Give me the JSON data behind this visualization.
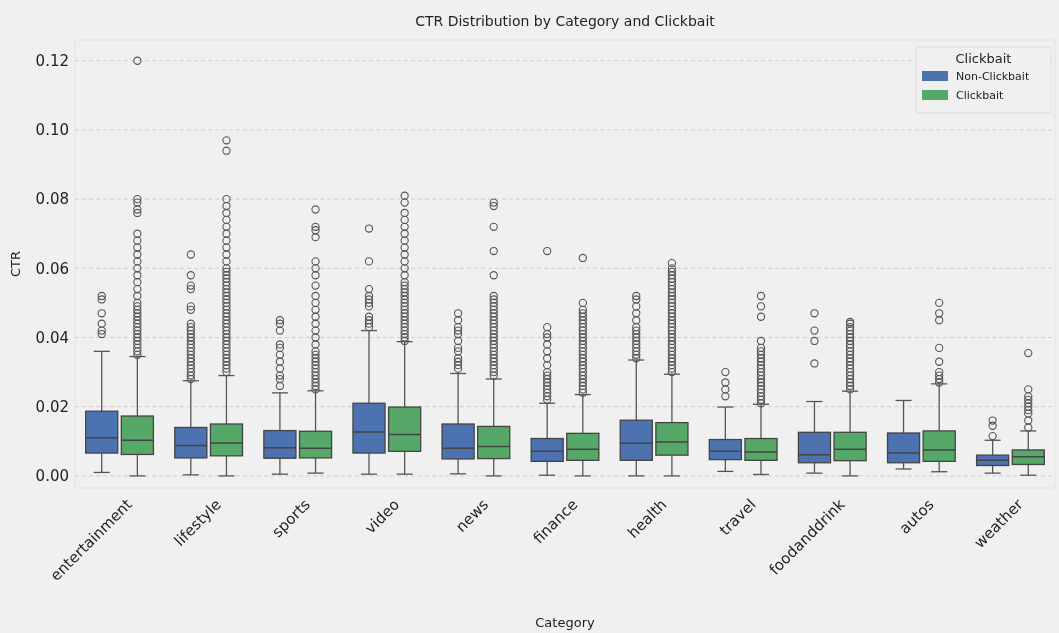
{
  "chart_data": {
    "type": "box",
    "title": "CTR Distribution by Category and Clickbait",
    "xlabel": "Category",
    "ylabel": "CTR",
    "legend_title": "Clickbait",
    "legend": "top right",
    "grid": "y",
    "categories": [
      "entertainment",
      "lifestyle",
      "sports",
      "video",
      "news",
      "finance",
      "health",
      "travel",
      "foodanddrink",
      "autos",
      "weather"
    ],
    "ylim": [
      -0.0035,
      0.126
    ],
    "yticks": [
      {
        "value": 0,
        "label": "0.00"
      },
      {
        "value": 0.02,
        "label": "0.02"
      },
      {
        "value": 0.04,
        "label": "0.04"
      },
      {
        "value": 0.06,
        "label": "0.06"
      },
      {
        "value": 0.08,
        "label": "0.08"
      },
      {
        "value": 0.1,
        "label": "0.10"
      },
      {
        "value": 0.12,
        "label": "0.12"
      }
    ],
    "series": [
      {
        "name": "Non-Clickbait",
        "color": "#4c72b0",
        "boxes": [
          {
            "low": 0.001,
            "q1": 0.0066,
            "median": 0.011,
            "q3": 0.0187,
            "high": 0.036,
            "outliers": [
              0.041,
              0.042,
              0.044,
              0.047,
              0.051,
              0.052
            ]
          },
          {
            "low": 0.0003,
            "q1": 0.0052,
            "median": 0.0088,
            "q3": 0.014,
            "high": 0.0275,
            "outliers": [
              0.028,
              0.029,
              0.03,
              0.031,
              0.032,
              0.033,
              0.034,
              0.035,
              0.036,
              0.037,
              0.038,
              0.039,
              0.04,
              0.041,
              0.042,
              0.043,
              0.044,
              0.048,
              0.049,
              0.054,
              0.055,
              0.058,
              0.064
            ]
          },
          {
            "low": 0.0005,
            "q1": 0.0051,
            "median": 0.0081,
            "q3": 0.0131,
            "high": 0.024,
            "outliers": [
              0.026,
              0.028,
              0.029,
              0.031,
              0.033,
              0.035,
              0.037,
              0.038,
              0.042,
              0.044,
              0.045
            ]
          },
          {
            "low": 0.0005,
            "q1": 0.0066,
            "median": 0.0127,
            "q3": 0.021,
            "high": 0.042,
            "outliers": [
              0.043,
              0.044,
              0.045,
              0.046,
              0.049,
              0.05,
              0.051,
              0.052,
              0.054,
              0.062,
              0.0715
            ]
          },
          {
            "low": 0.0006,
            "q1": 0.0049,
            "median": 0.008,
            "q3": 0.015,
            "high": 0.0296,
            "outliers": [
              0.031,
              0.032,
              0.033,
              0.034,
              0.036,
              0.037,
              0.039,
              0.041,
              0.042,
              0.043,
              0.045,
              0.047
            ]
          },
          {
            "low": 0.0002,
            "q1": 0.0042,
            "median": 0.0071,
            "q3": 0.0108,
            "high": 0.021,
            "outliers": [
              0.022,
              0.023,
              0.024,
              0.025,
              0.026,
              0.027,
              0.028,
              0.029,
              0.03,
              0.032,
              0.034,
              0.036,
              0.038,
              0.04,
              0.041,
              0.043,
              0.065
            ]
          },
          {
            "low": 0,
            "q1": 0.0045,
            "median": 0.0094,
            "q3": 0.0161,
            "high": 0.0335,
            "outliers": [
              0.034,
              0.035,
              0.036,
              0.037,
              0.038,
              0.039,
              0.04,
              0.041,
              0.042,
              0.043,
              0.045,
              0.047,
              0.049,
              0.051,
              0.052
            ]
          },
          {
            "low": 0.0013,
            "q1": 0.0047,
            "median": 0.0071,
            "q3": 0.0105,
            "high": 0.0199,
            "outliers": [
              0.023,
              0.025,
              0.027,
              0.03
            ]
          },
          {
            "low": 0.0008,
            "q1": 0.0038,
            "median": 0.0061,
            "q3": 0.0126,
            "high": 0.0215,
            "outliers": [
              0.0325,
              0.039,
              0.042,
              0.047
            ]
          },
          {
            "low": 0.002,
            "q1": 0.0038,
            "median": 0.0066,
            "q3": 0.0124,
            "high": 0.0218
          },
          {
            "low": 0.0008,
            "q1": 0.003,
            "median": 0.0045,
            "q3": 0.006,
            "high": 0.0103,
            "outliers": [
              0.0115,
              0.0145,
              0.016
            ]
          }
        ]
      },
      {
        "name": "Clickbait",
        "color": "#55a868",
        "boxes": [
          {
            "low": 0,
            "q1": 0.0062,
            "median": 0.0103,
            "q3": 0.0173,
            "high": 0.0345,
            "outliers": [
              0.035,
              0.036,
              0.037,
              0.038,
              0.039,
              0.04,
              0.041,
              0.042,
              0.043,
              0.044,
              0.045,
              0.046,
              0.047,
              0.048,
              0.049,
              0.05,
              0.052,
              0.054,
              0.056,
              0.058,
              0.06,
              0.062,
              0.064,
              0.066,
              0.068,
              0.07,
              0.076,
              0.077,
              0.079,
              0.08,
              0.12
            ]
          },
          {
            "low": 0,
            "q1": 0.0058,
            "median": 0.0095,
            "q3": 0.015,
            "high": 0.029,
            "outliers": [
              0.03,
              0.031,
              0.032,
              0.033,
              0.034,
              0.035,
              0.036,
              0.037,
              0.038,
              0.039,
              0.04,
              0.041,
              0.042,
              0.043,
              0.044,
              0.045,
              0.046,
              0.047,
              0.048,
              0.049,
              0.05,
              0.051,
              0.052,
              0.053,
              0.054,
              0.055,
              0.056,
              0.057,
              0.058,
              0.059,
              0.06,
              0.062,
              0.064,
              0.066,
              0.068,
              0.07,
              0.072,
              0.074,
              0.076,
              0.078,
              0.08,
              0.094,
              0.097
            ]
          },
          {
            "low": 0.0008,
            "q1": 0.0052,
            "median": 0.008,
            "q3": 0.0129,
            "high": 0.0246,
            "outliers": [
              0.025,
              0.026,
              0.027,
              0.028,
              0.029,
              0.03,
              0.031,
              0.032,
              0.033,
              0.034,
              0.035,
              0.036,
              0.038,
              0.04,
              0.042,
              0.044,
              0.046,
              0.048,
              0.05,
              0.052,
              0.055,
              0.058,
              0.06,
              0.062,
              0.069,
              0.071,
              0.072,
              0.077
            ]
          },
          {
            "low": 0.0005,
            "q1": 0.0071,
            "median": 0.012,
            "q3": 0.0199,
            "high": 0.0388,
            "outliers": [
              0.039,
              0.04,
              0.041,
              0.042,
              0.043,
              0.044,
              0.045,
              0.046,
              0.047,
              0.048,
              0.049,
              0.05,
              0.051,
              0.052,
              0.053,
              0.054,
              0.055,
              0.056,
              0.058,
              0.06,
              0.062,
              0.064,
              0.066,
              0.068,
              0.07,
              0.072,
              0.074,
              0.076,
              0.079,
              0.081
            ]
          },
          {
            "low": 0,
            "q1": 0.005,
            "median": 0.0085,
            "q3": 0.0143,
            "high": 0.028,
            "outliers": [
              0.029,
              0.03,
              0.031,
              0.032,
              0.033,
              0.034,
              0.035,
              0.036,
              0.037,
              0.038,
              0.039,
              0.04,
              0.041,
              0.042,
              0.043,
              0.044,
              0.045,
              0.046,
              0.047,
              0.048,
              0.049,
              0.05,
              0.051,
              0.052,
              0.058,
              0.065,
              0.072,
              0.078,
              0.079
            ]
          },
          {
            "low": 0,
            "q1": 0.0045,
            "median": 0.0077,
            "q3": 0.0123,
            "high": 0.0235,
            "outliers": [
              0.024,
              0.025,
              0.026,
              0.027,
              0.028,
              0.029,
              0.03,
              0.031,
              0.032,
              0.033,
              0.034,
              0.035,
              0.036,
              0.037,
              0.038,
              0.039,
              0.04,
              0.041,
              0.042,
              0.043,
              0.044,
              0.045,
              0.046,
              0.047,
              0.048,
              0.05,
              0.063
            ]
          },
          {
            "low": 0,
            "q1": 0.006,
            "median": 0.0098,
            "q3": 0.0154,
            "high": 0.0294,
            "outliers": [
              0.03,
              0.031,
              0.032,
              0.033,
              0.034,
              0.035,
              0.036,
              0.037,
              0.038,
              0.039,
              0.04,
              0.041,
              0.042,
              0.043,
              0.044,
              0.045,
              0.046,
              0.047,
              0.048,
              0.049,
              0.05,
              0.051,
              0.052,
              0.053,
              0.054,
              0.055,
              0.056,
              0.057,
              0.058,
              0.059,
              0.06,
              0.0615
            ]
          },
          {
            "low": 0.0004,
            "q1": 0.0045,
            "median": 0.0069,
            "q3": 0.0108,
            "high": 0.0207,
            "outliers": [
              0.021,
              0.022,
              0.023,
              0.024,
              0.025,
              0.026,
              0.027,
              0.028,
              0.029,
              0.03,
              0.031,
              0.032,
              0.033,
              0.034,
              0.035,
              0.036,
              0.037,
              0.039,
              0.046,
              0.049,
              0.052
            ]
          },
          {
            "low": 0,
            "q1": 0.0044,
            "median": 0.0077,
            "q3": 0.0126,
            "high": 0.0245,
            "outliers": [
              0.025,
              0.026,
              0.027,
              0.028,
              0.029,
              0.03,
              0.031,
              0.032,
              0.033,
              0.034,
              0.035,
              0.036,
              0.037,
              0.038,
              0.039,
              0.04,
              0.041,
              0.042,
              0.043,
              0.044,
              0.0445
            ]
          },
          {
            "low": 0.0012,
            "q1": 0.0042,
            "median": 0.0075,
            "q3": 0.013,
            "high": 0.0266,
            "outliers": [
              0.027,
              0.028,
              0.029,
              0.03,
              0.033,
              0.037,
              0.045,
              0.047,
              0.05
            ]
          },
          {
            "low": 0.0002,
            "q1": 0.0033,
            "median": 0.0055,
            "q3": 0.0075,
            "high": 0.013,
            "outliers": [
              0.014,
              0.016,
              0.018,
              0.019,
              0.02,
              0.021,
              0.022,
              0.023,
              0.025,
              0.0355
            ]
          }
        ]
      }
    ]
  }
}
